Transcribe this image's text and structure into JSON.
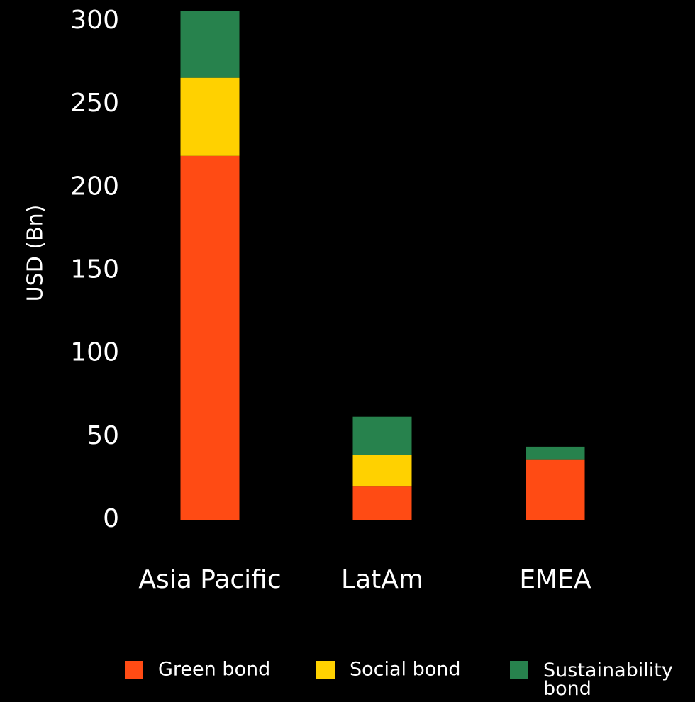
{
  "chart_data": {
    "type": "bar",
    "stacked": true,
    "categories": [
      "Asia Pacific",
      "LatAm",
      "EMEA"
    ],
    "series": [
      {
        "name": "Green bond",
        "color": "#ff4b14",
        "values": [
          219,
          20,
          36
        ]
      },
      {
        "name": "Social bond",
        "color": "#ffd100",
        "values": [
          47,
          19,
          0
        ]
      },
      {
        "name": "Sustainability bond",
        "color": "#27824d",
        "values": [
          40,
          23,
          8
        ]
      }
    ],
    "title": "",
    "xlabel": "",
    "ylabel": "USD (Bn)",
    "ylim": [
      0,
      300
    ],
    "yticks": [
      0,
      50,
      100,
      150,
      200,
      250,
      300
    ],
    "grid": false,
    "legend_position": "bottom"
  }
}
